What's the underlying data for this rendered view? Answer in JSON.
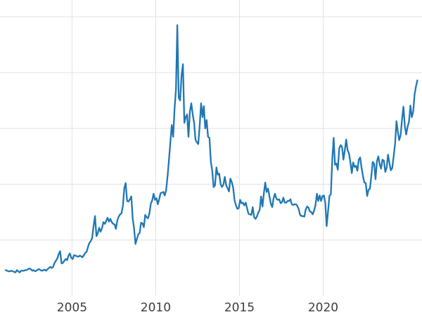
{
  "chart_data": {
    "type": "line",
    "title": "",
    "xlabel": "",
    "ylabel": "",
    "xlim": [
      2000.7,
      2025.9
    ],
    "ylim": [
      0,
      53
    ],
    "xticks": [
      2005,
      2010,
      2015,
      2020
    ],
    "xtick_labels": [
      "2005",
      "2010",
      "2015",
      "2020"
    ],
    "yticks": [
      10,
      20,
      30,
      40,
      50
    ],
    "grid": true,
    "grid_color": "#e2e2e2",
    "background": "#ffffff",
    "tick_color": "#3d3d3d",
    "line_width": 2.3,
    "legend": "none",
    "series": [
      {
        "name": "series-1",
        "color": "#1f77b4",
        "x_start": 2001.04,
        "x_step": 0.0833333,
        "values": [
          4.6,
          4.5,
          4.4,
          4.4,
          4.5,
          4.4,
          4.3,
          4.2,
          4.6,
          4.4,
          4.2,
          4.5,
          4.5,
          4.5,
          4.6,
          4.6,
          4.8,
          4.9,
          4.8,
          4.5,
          4.6,
          4.4,
          4.5,
          4.7,
          4.8,
          4.6,
          4.5,
          4.6,
          4.7,
          4.5,
          4.8,
          5.0,
          5.2,
          5.0,
          5.2,
          5.9,
          6.3,
          6.7,
          7.5,
          8.0,
          5.8,
          5.9,
          6.3,
          6.6,
          6.4,
          7.2,
          7.6,
          6.8,
          6.6,
          7.3,
          7.2,
          7.1,
          7.0,
          7.2,
          7.1,
          6.9,
          7.3,
          7.7,
          7.9,
          8.8,
          9.5,
          9.8,
          10.4,
          12.6,
          14.3,
          10.7,
          11.2,
          12.2,
          11.5,
          12.1,
          13.2,
          12.9,
          13.4,
          14.0,
          13.3,
          13.8,
          13.2,
          12.9,
          12.8,
          12.0,
          13.5,
          14.2,
          14.6,
          14.8,
          16.2,
          19.3,
          20.2,
          17.0,
          16.9,
          17.3,
          17.8,
          13.8,
          12.1,
          9.3,
          10.2,
          11.0,
          11.3,
          13.1,
          13.0,
          12.3,
          14.5,
          14.1,
          13.9,
          14.8,
          16.5,
          17.1,
          18.3,
          17.2,
          17.5,
          16.4,
          17.3,
          18.4,
          18.5,
          18.6,
          18.0,
          19.0,
          21.5,
          24.3,
          27.5,
          30.6,
          28.5,
          33.5,
          37.0,
          48.5,
          35.5,
          35.0,
          39.5,
          41.5,
          31.0,
          32.0,
          32.5,
          28.5,
          33.0,
          34.5,
          32.5,
          31.0,
          28.0,
          27.5,
          27.2,
          30.5,
          34.5,
          32.0,
          34.0,
          30.0,
          31.5,
          28.5,
          28.3,
          24.0,
          22.5,
          19.5,
          19.8,
          23.0,
          21.7,
          21.9,
          20.0,
          19.5,
          19.9,
          21.3,
          19.8,
          19.3,
          18.7,
          21.0,
          20.4,
          19.4,
          17.1,
          16.2,
          15.6,
          15.7,
          17.2,
          16.6,
          16.7,
          16.2,
          16.7,
          15.7,
          14.7,
          14.6,
          14.5,
          15.9,
          14.1,
          13.8,
          14.2,
          14.9,
          15.4,
          17.8,
          16.0,
          18.4,
          20.3,
          18.6,
          19.2,
          17.8,
          16.5,
          15.9,
          17.5,
          18.3,
          17.4,
          17.2,
          17.3,
          16.6,
          16.8,
          17.6,
          16.7,
          16.7,
          17.0,
          17.0,
          17.3,
          16.4,
          16.3,
          16.4,
          16.4,
          16.1,
          15.5,
          14.5,
          14.3,
          14.3,
          14.2,
          15.5,
          16.0,
          15.8,
          15.1,
          15.0,
          14.6,
          15.3,
          16.3,
          18.3,
          17.0,
          18.0,
          17.0,
          17.9,
          18.0,
          16.7,
          12.5,
          15.1,
          17.9,
          18.2,
          24.4,
          28.3,
          23.5,
          23.7,
          22.6,
          26.4,
          27.0,
          26.7,
          24.4,
          26.0,
          28.0,
          26.1,
          25.5,
          23.9,
          22.0,
          23.9,
          23.1,
          23.3,
          22.4,
          24.4,
          24.8,
          23.0,
          21.5,
          20.3,
          20.2,
          17.9,
          19.0,
          19.2,
          21.4,
          24.0,
          23.7,
          20.9,
          24.1,
          25.0,
          23.6,
          22.8,
          24.4,
          24.2,
          22.2,
          23.0,
          25.3,
          23.8,
          22.5,
          22.9,
          25.0,
          27.2,
          31.3,
          29.4,
          27.9,
          28.8,
          31.6,
          33.9,
          30.4,
          28.9,
          30.3,
          31.2,
          34.1,
          32.0,
          33.0,
          36.0,
          37.5,
          38.6
        ]
      }
    ]
  }
}
